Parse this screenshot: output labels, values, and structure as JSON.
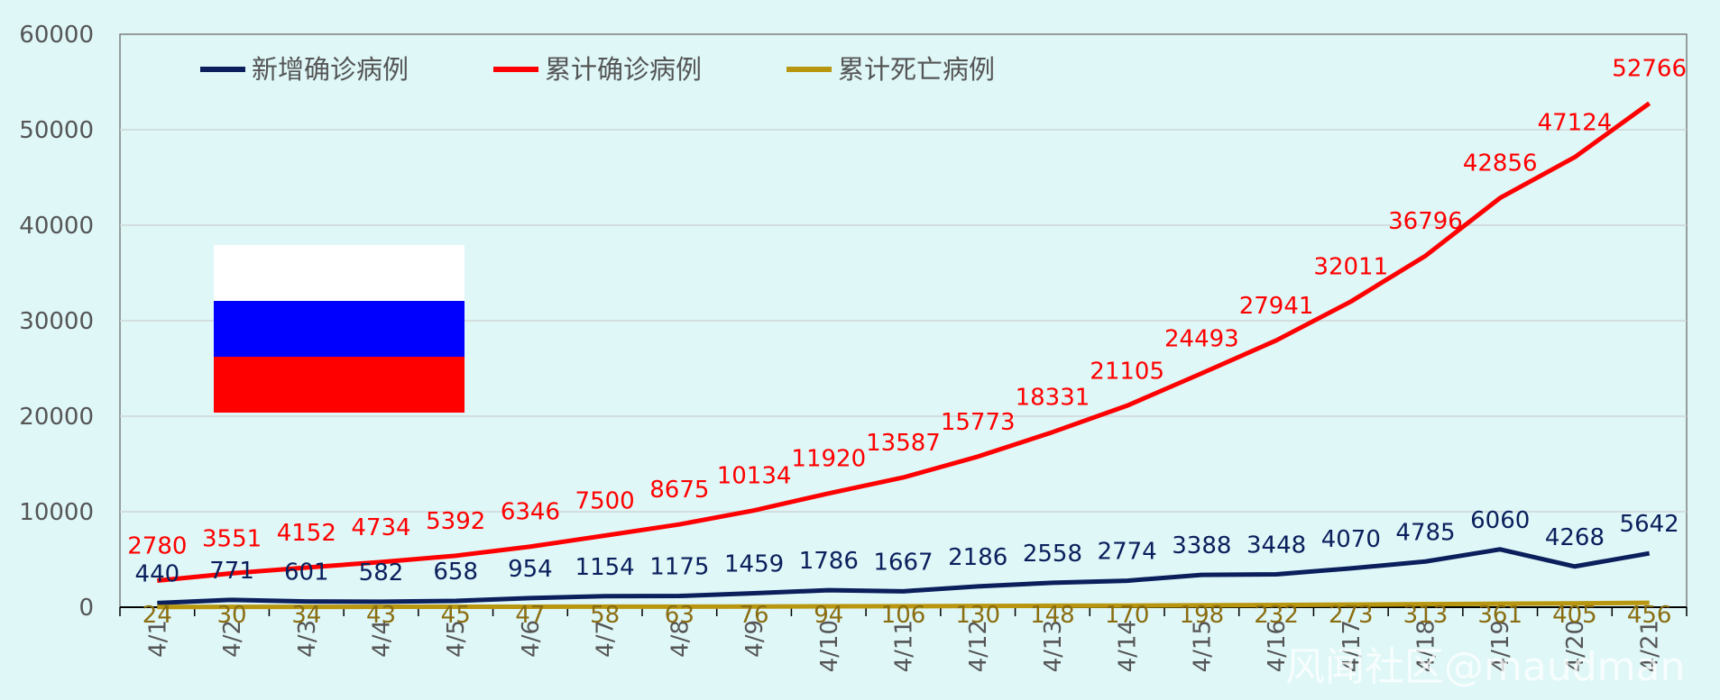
{
  "chart_data": {
    "type": "line",
    "categories": [
      "4/1",
      "4/2",
      "4/3",
      "4/4",
      "4/5",
      "4/6",
      "4/7",
      "4/8",
      "4/9",
      "4/10",
      "4/11",
      "4/12",
      "4/13",
      "4/14",
      "4/15",
      "4/16",
      "4/17",
      "4/18",
      "4/19",
      "4/20",
      "4/21"
    ],
    "ylim": [
      0,
      60000
    ],
    "yticks": [
      0,
      10000,
      20000,
      30000,
      40000,
      50000,
      60000
    ],
    "grid": true,
    "legend_position": "top-left",
    "series": [
      {
        "name": "新增确诊病例",
        "color": "#0a1f5c",
        "label_color": "#0a1f5c",
        "values": [
          440,
          771,
          601,
          582,
          658,
          954,
          1154,
          1175,
          1459,
          1786,
          1667,
          2186,
          2558,
          2774,
          3388,
          3448,
          4070,
          4785,
          6060,
          4268,
          5642
        ]
      },
      {
        "name": "累计确诊病例",
        "color": "#ff0000",
        "label_color": "#ff0000",
        "values": [
          2780,
          3551,
          4152,
          4734,
          5392,
          6346,
          7500,
          8675,
          10134,
          11920,
          13587,
          15773,
          18331,
          21105,
          24493,
          27941,
          32011,
          36796,
          42856,
          47124,
          52766
        ]
      },
      {
        "name": "累计死亡病例",
        "color": "#b8960f",
        "label_color": "#8a6d10",
        "values": [
          24,
          30,
          34,
          43,
          45,
          47,
          58,
          63,
          76,
          94,
          106,
          130,
          148,
          170,
          198,
          232,
          273,
          313,
          361,
          405,
          456
        ]
      }
    ]
  },
  "flag": {
    "colors": [
      "#ffffff",
      "#0000ff",
      "#ff0000"
    ]
  },
  "watermark": "风闻社区@maudman"
}
